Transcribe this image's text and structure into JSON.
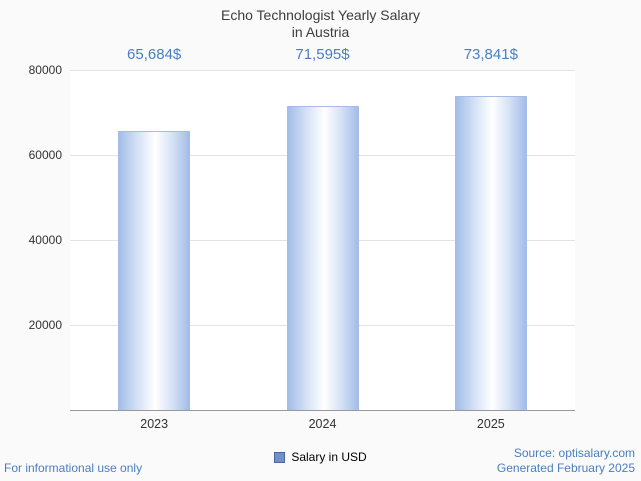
{
  "header": {
    "title_line1": "Echo Technologist Yearly Salary",
    "title_line2": "in Austria"
  },
  "chart_data": {
    "type": "bar",
    "title": "Echo Technologist Yearly Salary in Austria",
    "categories": [
      "2023",
      "2024",
      "2025"
    ],
    "values": [
      65684,
      71595,
      73841
    ],
    "value_labels": [
      "65,684$",
      "71,595$",
      "73,841$"
    ],
    "xlabel": "",
    "ylabel": "",
    "ylim": [
      0,
      80000
    ],
    "yticks": [
      20000,
      40000,
      60000,
      80000
    ],
    "grid": true,
    "legend_position": "bottom",
    "legend": [
      {
        "label": "Salary in USD",
        "color": "#7090cc"
      }
    ],
    "bar_color_edge": "#a3bde8",
    "bar_color_center": "#ffffff",
    "value_label_color": "#4a7ebf"
  },
  "footer": {
    "left": "For informational use only",
    "source": "Source: optisalary.com",
    "generated": "Generated February 2025"
  }
}
